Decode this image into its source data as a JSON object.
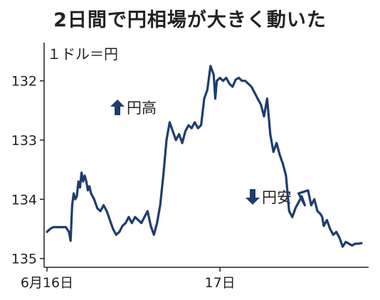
{
  "header": {
    "title": "2日間で円相場が大きく動いた",
    "unit": "１ドル＝円"
  },
  "annotations": {
    "up": "円高",
    "down": "円安",
    "arrow_up_icon": "arrow-up-icon",
    "arrow_down_icon": "arrow-down-icon"
  },
  "colors": {
    "line": "#1f3c6e",
    "arrow": "#1f3c6e",
    "axis": "#222222"
  },
  "chart_data": {
    "type": "line",
    "title": "2日間で円相場が大きく動いた",
    "ylabel": "１ドル＝円",
    "y_inverted": true,
    "ylim": [
      131.5,
      135.1
    ],
    "xlim": [
      0,
      1.0
    ],
    "yticks": [
      132,
      133,
      134,
      135
    ],
    "ytick_labels": [
      "132",
      "133",
      "134",
      "135"
    ],
    "xticks": [
      0,
      0.55
    ],
    "xtick_labels": [
      "6月16日",
      "17日"
    ],
    "series": [
      {
        "values_x": [
          0.0,
          0.01,
          0.02,
          0.04,
          0.06,
          0.07,
          0.075,
          0.08,
          0.085,
          0.09,
          0.095,
          0.1,
          0.105,
          0.11,
          0.115,
          0.12,
          0.125,
          0.13,
          0.135,
          0.14,
          0.15,
          0.16,
          0.17,
          0.18,
          0.19,
          0.2,
          0.21,
          0.22,
          0.23,
          0.24,
          0.25,
          0.26,
          0.27,
          0.28,
          0.29,
          0.3,
          0.31,
          0.32,
          0.33,
          0.34,
          0.35,
          0.36,
          0.37,
          0.38,
          0.39,
          0.4,
          0.41,
          0.42,
          0.43,
          0.44,
          0.45,
          0.46,
          0.47,
          0.48,
          0.49,
          0.5,
          0.51,
          0.52,
          0.53,
          0.535,
          0.54,
          0.55,
          0.56,
          0.57,
          0.58,
          0.59,
          0.6,
          0.61,
          0.62,
          0.63,
          0.64,
          0.65,
          0.66,
          0.67,
          0.68,
          0.69,
          0.7,
          0.71,
          0.72,
          0.73,
          0.74,
          0.75,
          0.76,
          0.77,
          0.78,
          0.79,
          0.8,
          0.81,
          0.82,
          0.8,
          0.83,
          0.84,
          0.85,
          0.86,
          0.87,
          0.875,
          0.88,
          0.89,
          0.9,
          0.91,
          0.92,
          0.93,
          0.94,
          0.95,
          0.96,
          0.97,
          0.98,
          0.99,
          1.0
        ],
        "values": [
          134.55,
          134.5,
          134.47,
          134.47,
          134.47,
          134.55,
          134.7,
          134.1,
          133.9,
          134.0,
          133.95,
          133.7,
          133.8,
          133.55,
          133.7,
          133.6,
          133.7,
          133.85,
          133.78,
          133.9,
          134.0,
          134.15,
          134.2,
          134.1,
          134.2,
          134.35,
          134.5,
          134.6,
          134.55,
          134.45,
          134.4,
          134.3,
          134.4,
          134.3,
          134.35,
          134.4,
          134.3,
          134.2,
          134.45,
          134.6,
          134.4,
          134.1,
          133.6,
          133.0,
          132.7,
          132.85,
          133.0,
          132.9,
          133.05,
          132.85,
          132.75,
          132.8,
          132.7,
          132.8,
          132.75,
          132.3,
          132.15,
          131.75,
          131.9,
          132.3,
          132.0,
          131.95,
          132.0,
          131.95,
          132.05,
          132.1,
          131.98,
          131.95,
          132.0,
          132.0,
          132.05,
          132.1,
          132.2,
          132.3,
          132.4,
          132.6,
          132.3,
          132.9,
          133.2,
          133.05,
          133.25,
          133.4,
          133.6,
          134.2,
          134.3,
          134.15,
          134.05,
          133.95,
          134.1,
          133.9,
          133.85,
          134.1,
          134.0,
          134.2,
          134.25,
          134.3,
          134.45,
          134.35,
          134.5,
          134.6,
          134.55,
          134.65,
          134.8,
          134.72,
          134.75,
          134.78,
          134.75,
          134.75,
          134.74
        ]
      }
    ]
  }
}
